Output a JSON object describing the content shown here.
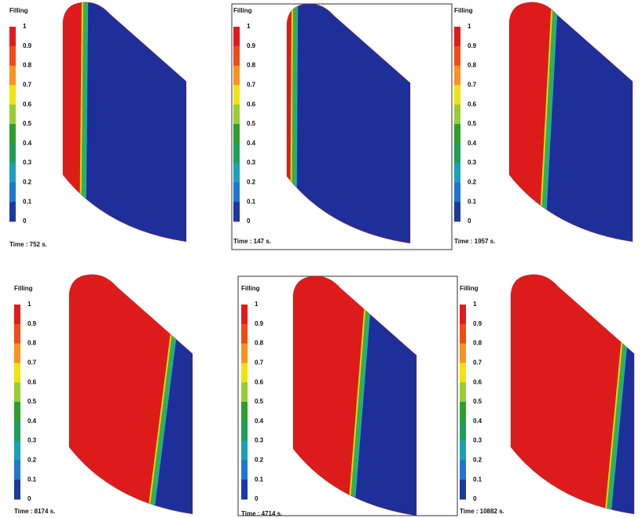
{
  "panels": [
    {
      "legend_title": "Filling",
      "ticks": [
        "1",
        "0.9",
        "0.8",
        "0.7",
        "0.6",
        "0.5",
        "0.4",
        "0.3",
        "0.2",
        "0.1",
        "0"
      ],
      "time": "Time : 752 s."
    },
    {
      "legend_title": "Filling",
      "ticks": [
        "1",
        "0.9",
        "0.8",
        "0.7",
        "0.6",
        "0.5",
        "0.4",
        "0.3",
        "0.2",
        "0.1",
        "0"
      ],
      "time": "Time : 147 s."
    },
    {
      "legend_title": "Filling",
      "ticks": [
        "1",
        "0.9",
        "0.8",
        "0.7",
        "0.6",
        "0.5",
        "0.4",
        "0.3",
        "0.2",
        "0.1",
        "0"
      ],
      "time": "Time : 1957 s."
    },
    {
      "legend_title": "Filling",
      "ticks": [
        "1",
        "0.9",
        "0.8",
        "0.7",
        "0.6",
        "0.5",
        "0.4",
        "0.3",
        "0.2",
        "0.1",
        "0"
      ],
      "time": "Time : 8174 s."
    },
    {
      "legend_title": "Filling",
      "ticks": [
        "1",
        "0.9",
        "0.8",
        "0.7",
        "0.6",
        "0.5",
        "0.4",
        "0.3",
        "0.2",
        "0.1",
        "0"
      ],
      "time": "Time : 4714 s."
    },
    {
      "legend_title": "Filling",
      "ticks": [
        "1",
        "0.9",
        "0.8",
        "0.7",
        "0.6",
        "0.5",
        "0.4",
        "0.3",
        "0.2",
        "0.1",
        "0"
      ],
      "time": "Time : 10882 s."
    }
  ]
}
